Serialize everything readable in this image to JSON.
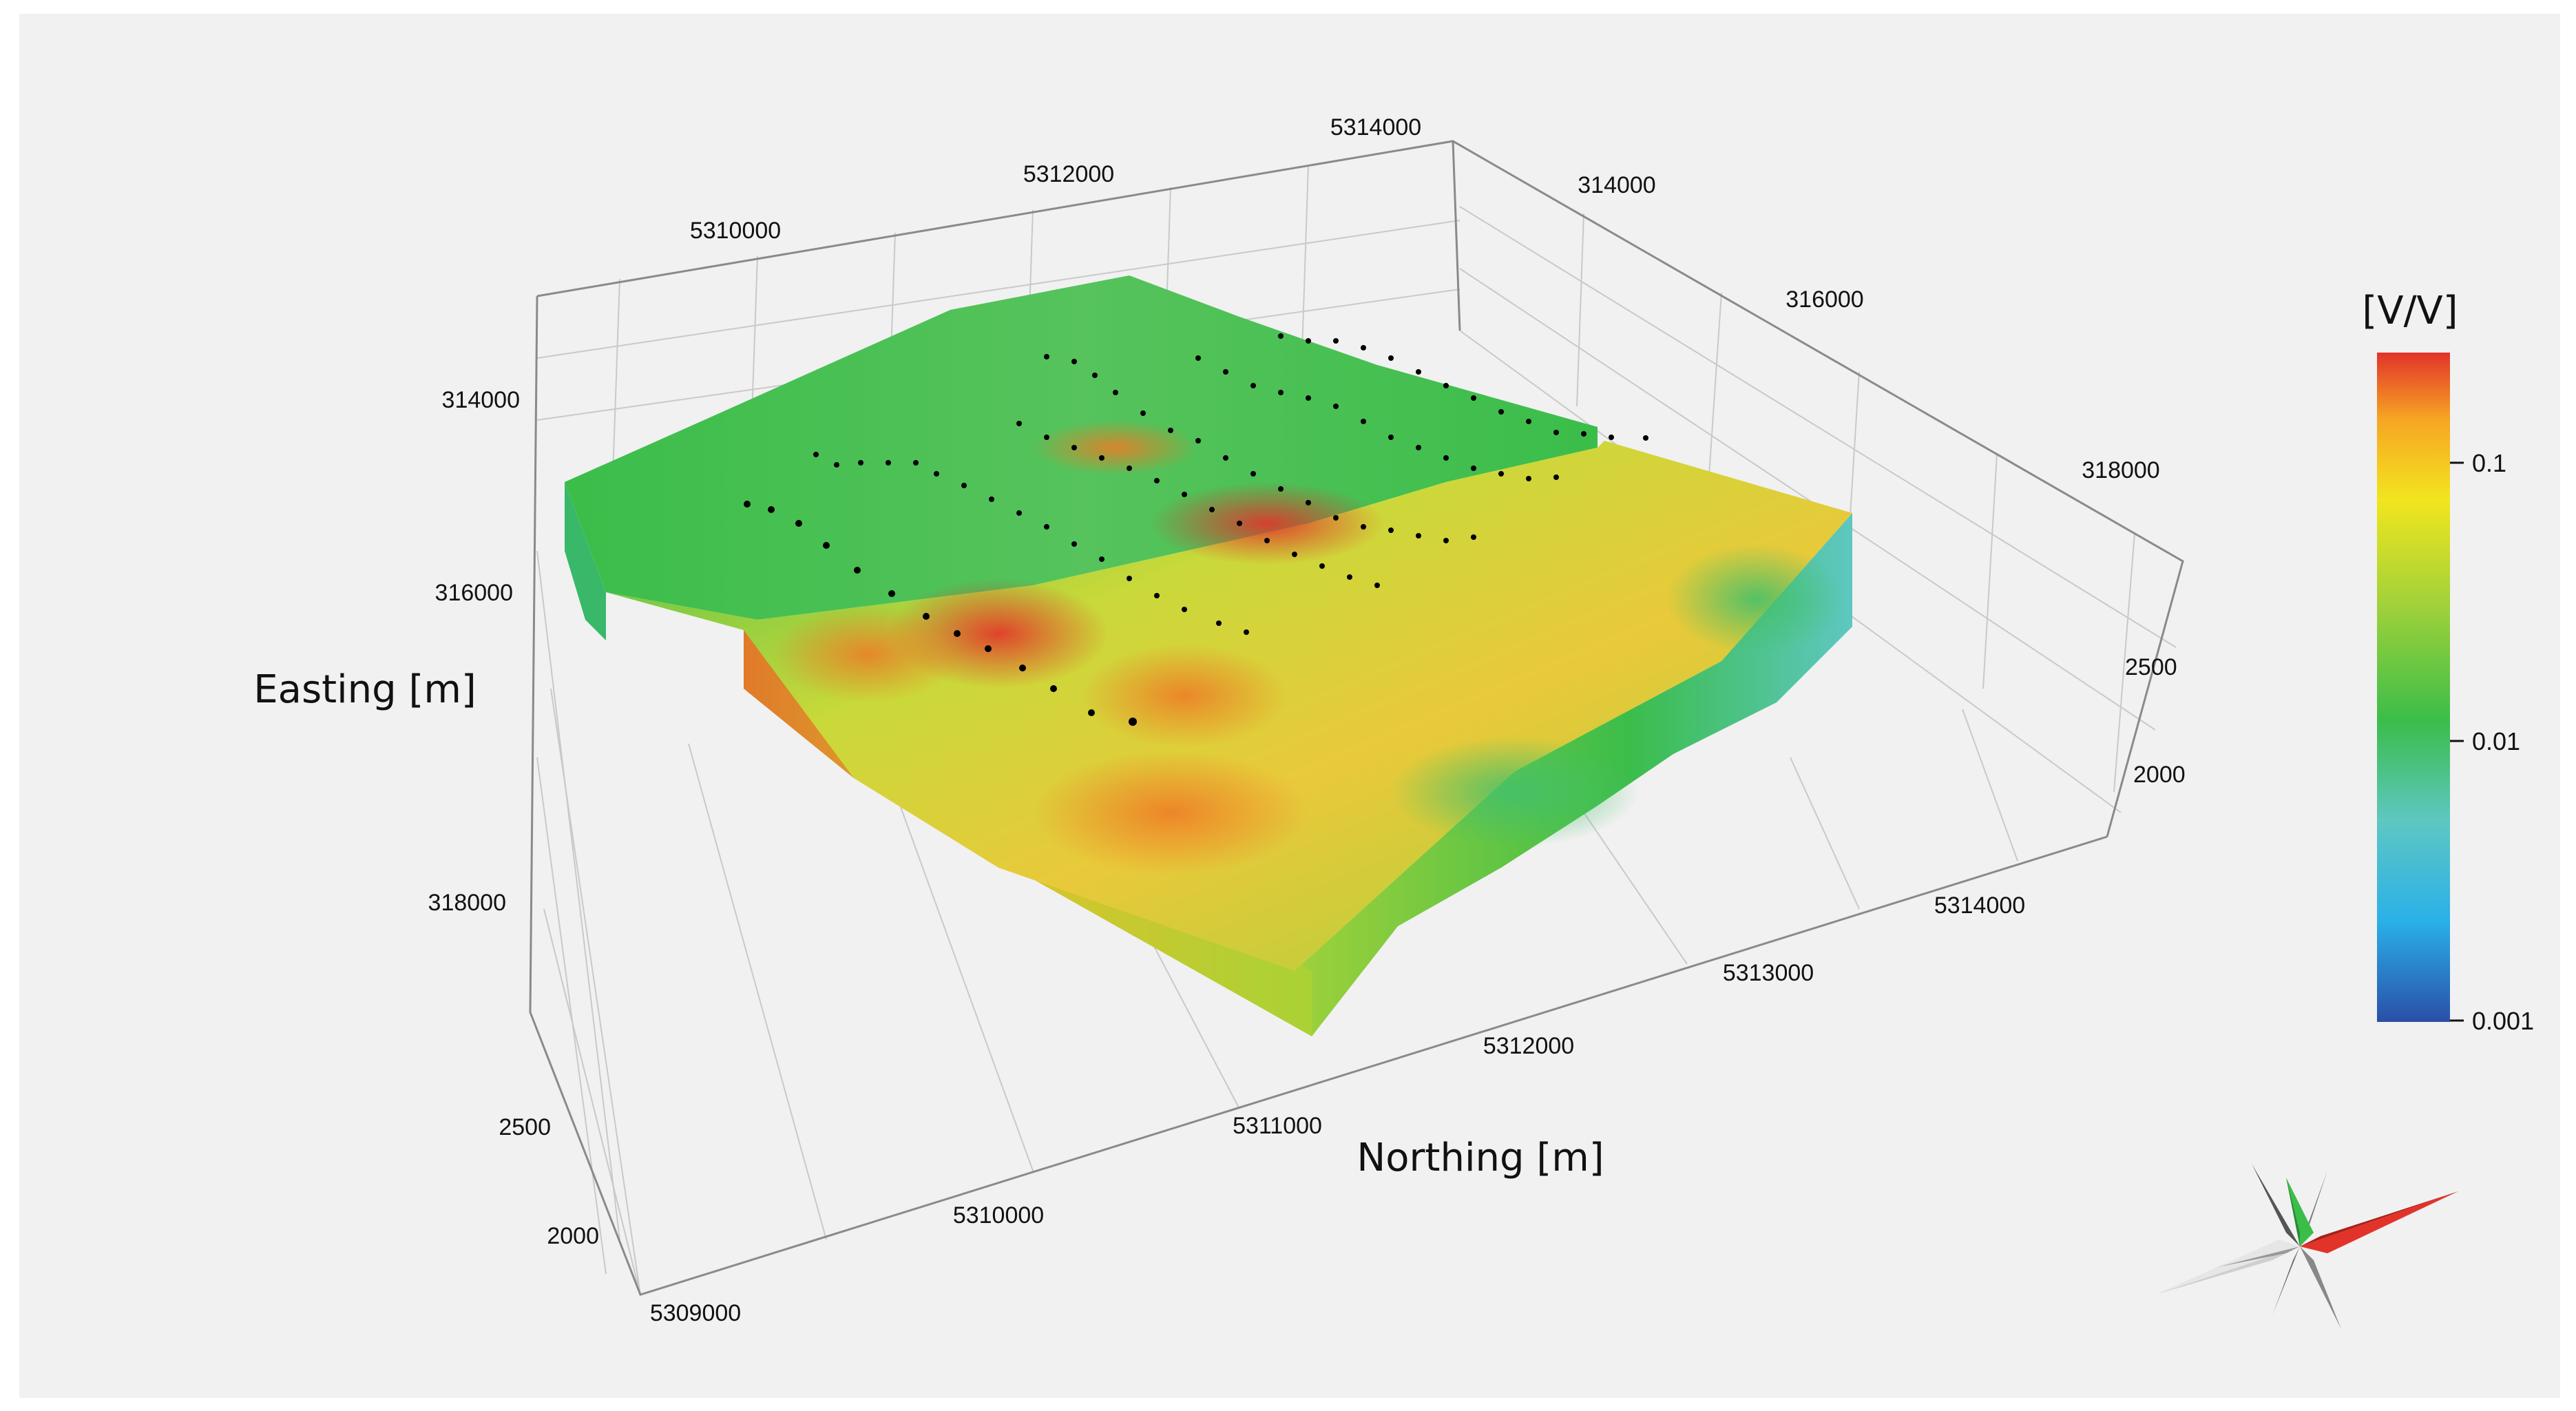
{
  "chart_data": {
    "type": "heatmap",
    "subtype": "3d-volume",
    "xlabel": "Easting [m]",
    "ylabel": "Northing [m]",
    "easting_ticks_left": [
      "314000",
      "316000",
      "318000"
    ],
    "easting_ticks_right": [
      "314000",
      "316000",
      "318000"
    ],
    "northing_ticks_top": [
      "5310000",
      "5312000",
      "5314000"
    ],
    "northing_ticks_bottom": [
      "5309000",
      "5310000",
      "5311000",
      "5312000",
      "5313000",
      "5314000"
    ],
    "elevation_ticks_left": [
      "2500",
      "2000"
    ],
    "elevation_ticks_right": [
      "2500",
      "2000"
    ],
    "colorbar": {
      "title": "[V/V]",
      "scale": "log",
      "ticks": [
        "0.1",
        "0.01",
        "0.001"
      ],
      "range": [
        0.001,
        0.2
      ],
      "colors": [
        "#2a4fa8",
        "#2ab0e8",
        "#5ec7c2",
        "#3bbd4a",
        "#9fd13a",
        "#f2e51e",
        "#f6a623",
        "#e2332a"
      ]
    },
    "grid": true,
    "colors": {
      "background": "#f1f1f1",
      "high": "#e2332a",
      "mid": "#f2e51e",
      "low": "#3bbd4a",
      "survey_points": "#000000"
    }
  },
  "icons": {
    "compass": "compass-rose-icon"
  }
}
